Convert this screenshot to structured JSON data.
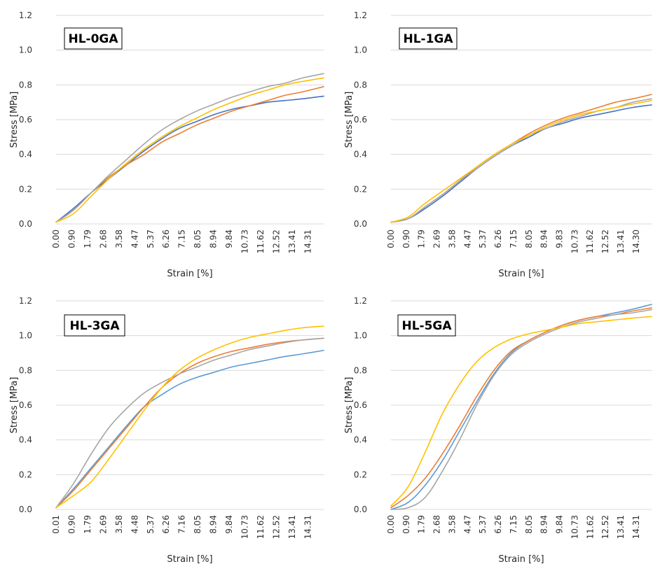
{
  "chart_data": [
    {
      "type": "line",
      "panel_label": "HL-0GA",
      "xlabel": "Strain [%]",
      "ylabel": "Stress [MPa]",
      "ylim": [
        0,
        1.2
      ],
      "yticks": [
        "0.0",
        "0.2",
        "0.4",
        "0.6",
        "0.8",
        "1.0",
        "1.2"
      ],
      "xlim": [
        0,
        15.2
      ],
      "xtick_labels": [
        "0.00",
        "0.90",
        "1.79",
        "2.68",
        "3.58",
        "4.47",
        "5.37",
        "6.26",
        "7.15",
        "8.05",
        "8.94",
        "9.84",
        "10.73",
        "11.62",
        "12.52",
        "13.41",
        "14.31"
      ],
      "grid": "horizontal",
      "series": [
        {
          "color": "#4472C4",
          "x": [
            0,
            1,
            2,
            3,
            4,
            5,
            6,
            7,
            8,
            9,
            10,
            11,
            12,
            13,
            14,
            15.2
          ],
          "y": [
            0.01,
            0.09,
            0.18,
            0.26,
            0.34,
            0.42,
            0.49,
            0.55,
            0.59,
            0.63,
            0.66,
            0.68,
            0.7,
            0.71,
            0.72,
            0.735
          ]
        },
        {
          "color": "#ED7D31",
          "x": [
            0,
            1,
            2,
            3,
            4,
            5,
            6,
            7,
            8,
            9,
            10,
            11,
            12,
            13,
            14,
            15.2
          ],
          "y": [
            0.01,
            0.08,
            0.18,
            0.27,
            0.34,
            0.4,
            0.47,
            0.52,
            0.57,
            0.61,
            0.65,
            0.68,
            0.71,
            0.74,
            0.76,
            0.79
          ]
        },
        {
          "color": "#A5A5A5",
          "x": [
            0,
            1,
            2,
            3,
            4,
            5,
            6,
            7,
            8,
            9,
            10,
            11,
            12,
            13,
            14,
            15.2
          ],
          "y": [
            0.01,
            0.08,
            0.18,
            0.28,
            0.37,
            0.46,
            0.54,
            0.6,
            0.65,
            0.69,
            0.73,
            0.76,
            0.79,
            0.81,
            0.84,
            0.865
          ]
        },
        {
          "color": "#FFC000",
          "x": [
            0,
            1,
            2,
            3,
            4,
            5,
            6,
            7,
            8,
            9,
            10,
            11,
            12,
            13,
            14,
            15.2
          ],
          "y": [
            0.01,
            0.06,
            0.16,
            0.26,
            0.35,
            0.43,
            0.5,
            0.56,
            0.61,
            0.66,
            0.7,
            0.74,
            0.77,
            0.8,
            0.82,
            0.84
          ]
        }
      ]
    },
    {
      "type": "line",
      "panel_label": "HL-1GA",
      "xlabel": "Strain [%]",
      "ylabel": "Stress [MPa]",
      "ylim": [
        0,
        1.2
      ],
      "yticks": [
        "0.0",
        "0.2",
        "0.4",
        "0.6",
        "0.8",
        "1.0",
        "1.2"
      ],
      "xlim": [
        0,
        15.1
      ],
      "xtick_labels": [
        "0.00",
        "0.90",
        "1.79",
        "2.69",
        "3.58",
        "4.47",
        "5.37",
        "6.26",
        "7.15",
        "8.05",
        "8.94",
        "9.83",
        "10.73",
        "11.62",
        "12.52",
        "13.41",
        "14.30"
      ],
      "grid": "horizontal",
      "series": [
        {
          "color": "#4472C4",
          "x": [
            0,
            1,
            2,
            3,
            4,
            5,
            6,
            7,
            8,
            9,
            10,
            11,
            12,
            13,
            14,
            15.1
          ],
          "y": [
            0.01,
            0.03,
            0.09,
            0.16,
            0.24,
            0.32,
            0.39,
            0.45,
            0.5,
            0.55,
            0.58,
            0.61,
            0.63,
            0.65,
            0.67,
            0.685
          ]
        },
        {
          "color": "#ED7D31",
          "x": [
            0,
            1,
            2,
            3,
            4,
            5,
            6,
            7,
            8,
            9,
            10,
            11,
            12,
            13,
            14,
            15.1
          ],
          "y": [
            0.01,
            0.03,
            0.1,
            0.17,
            0.25,
            0.33,
            0.4,
            0.46,
            0.52,
            0.57,
            0.61,
            0.64,
            0.67,
            0.7,
            0.72,
            0.745
          ]
        },
        {
          "color": "#A5A5A5",
          "x": [
            0,
            1,
            2,
            3,
            4,
            5,
            6,
            7,
            8,
            9,
            10,
            11,
            12,
            13,
            14,
            15.1
          ],
          "y": [
            0.01,
            0.03,
            0.1,
            0.17,
            0.25,
            0.32,
            0.39,
            0.45,
            0.51,
            0.55,
            0.59,
            0.62,
            0.65,
            0.67,
            0.7,
            0.72
          ]
        },
        {
          "color": "#FFC000",
          "x": [
            0,
            1,
            2,
            3,
            4,
            5,
            6,
            7,
            8,
            9,
            10,
            11,
            12,
            13,
            14,
            15.1
          ],
          "y": [
            0.01,
            0.04,
            0.12,
            0.19,
            0.26,
            0.33,
            0.4,
            0.46,
            0.51,
            0.56,
            0.6,
            0.63,
            0.65,
            0.67,
            0.69,
            0.71
          ]
        }
      ]
    },
    {
      "type": "line",
      "panel_label": "HL-3GA",
      "xlabel": "Strain [%]",
      "ylabel": "Stress [MPa]",
      "ylim": [
        0,
        1.2
      ],
      "yticks": [
        "0.0",
        "0.2",
        "0.4",
        "0.6",
        "0.8",
        "1.0",
        "1.2"
      ],
      "xlim": [
        0,
        15.2
      ],
      "xtick_labels": [
        "0.01",
        "0.90",
        "1.79",
        "2.69",
        "3.58",
        "4.48",
        "5.37",
        "6.26",
        "7.16",
        "8.05",
        "8.94",
        "9.84",
        "10.73",
        "11.62",
        "12.52",
        "13.41",
        "14.31"
      ],
      "grid": "horizontal",
      "series": [
        {
          "color": "#5B9BD5",
          "x": [
            0,
            1,
            2,
            3,
            4,
            5,
            6,
            7,
            8,
            9,
            10,
            11,
            12,
            13,
            14,
            15.2
          ],
          "y": [
            0.01,
            0.12,
            0.24,
            0.36,
            0.48,
            0.59,
            0.66,
            0.72,
            0.76,
            0.79,
            0.82,
            0.84,
            0.86,
            0.88,
            0.895,
            0.915
          ]
        },
        {
          "color": "#ED7D31",
          "x": [
            0,
            1,
            2,
            3,
            4,
            5,
            6,
            7,
            8,
            9,
            10,
            11,
            12,
            13,
            14,
            15.2
          ],
          "y": [
            0.01,
            0.11,
            0.23,
            0.35,
            0.47,
            0.59,
            0.7,
            0.78,
            0.84,
            0.88,
            0.91,
            0.93,
            0.95,
            0.965,
            0.975,
            0.985
          ]
        },
        {
          "color": "#A5A5A5",
          "x": [
            0,
            1,
            2,
            3,
            4,
            5,
            6,
            7,
            8,
            9,
            10,
            11,
            12,
            13,
            14,
            15.2
          ],
          "y": [
            0.01,
            0.15,
            0.32,
            0.47,
            0.58,
            0.67,
            0.73,
            0.78,
            0.82,
            0.86,
            0.89,
            0.92,
            0.94,
            0.96,
            0.975,
            0.985
          ]
        },
        {
          "color": "#FFC000",
          "x": [
            0,
            1,
            2,
            3,
            4,
            5,
            6,
            7,
            8,
            9,
            10,
            11,
            12,
            13,
            14,
            15.2
          ],
          "y": [
            0.01,
            0.08,
            0.16,
            0.29,
            0.43,
            0.57,
            0.7,
            0.8,
            0.87,
            0.92,
            0.96,
            0.99,
            1.01,
            1.03,
            1.045,
            1.055
          ]
        }
      ]
    },
    {
      "type": "line",
      "panel_label": "HL-5GA",
      "xlabel": "Strain [%]",
      "ylabel": "Stress [MPa]",
      "ylim": [
        0,
        1.2
      ],
      "yticks": [
        "0.0",
        "0.2",
        "0.4",
        "0.6",
        "0.8",
        "1.0",
        "1.2"
      ],
      "xlim": [
        0,
        15.2
      ],
      "xtick_labels": [
        "0.00",
        "0.90",
        "1.79",
        "2.68",
        "3.58",
        "4.47",
        "5.37",
        "6.26",
        "7.15",
        "8.05",
        "8.94",
        "9.84",
        "10.73",
        "11.62",
        "12.52",
        "13.41",
        "14.31"
      ],
      "grid": "horizontal",
      "series": [
        {
          "color": "#5B9BD5",
          "x": [
            0,
            1,
            2,
            3,
            4,
            5,
            6,
            7,
            8,
            9,
            10,
            11,
            12,
            13,
            14,
            15.2
          ],
          "y": [
            0.0,
            0.04,
            0.14,
            0.28,
            0.45,
            0.62,
            0.78,
            0.9,
            0.97,
            1.02,
            1.06,
            1.09,
            1.11,
            1.13,
            1.15,
            1.18
          ]
        },
        {
          "color": "#ED7D31",
          "x": [
            0,
            1,
            2,
            3,
            4,
            5,
            6,
            7,
            8,
            9,
            10,
            11,
            12,
            13,
            14,
            15.2
          ],
          "y": [
            0.01,
            0.08,
            0.18,
            0.32,
            0.48,
            0.65,
            0.8,
            0.91,
            0.97,
            1.02,
            1.06,
            1.09,
            1.11,
            1.12,
            1.14,
            1.16
          ]
        },
        {
          "color": "#A5A5A5",
          "x": [
            0,
            1,
            2,
            3,
            4,
            5,
            6,
            7,
            8,
            9,
            10,
            11,
            12,
            13,
            14,
            15.2
          ],
          "y": [
            0.0,
            0.01,
            0.07,
            0.22,
            0.4,
            0.6,
            0.77,
            0.89,
            0.96,
            1.01,
            1.05,
            1.08,
            1.1,
            1.12,
            1.13,
            1.15
          ]
        },
        {
          "color": "#FFC000",
          "x": [
            0,
            1,
            2,
            3,
            4,
            5,
            6,
            7,
            8,
            9,
            10,
            11,
            12,
            13,
            14,
            15.2
          ],
          "y": [
            0.02,
            0.13,
            0.33,
            0.55,
            0.72,
            0.85,
            0.93,
            0.98,
            1.01,
            1.03,
            1.05,
            1.07,
            1.08,
            1.09,
            1.1,
            1.11
          ]
        }
      ]
    }
  ]
}
